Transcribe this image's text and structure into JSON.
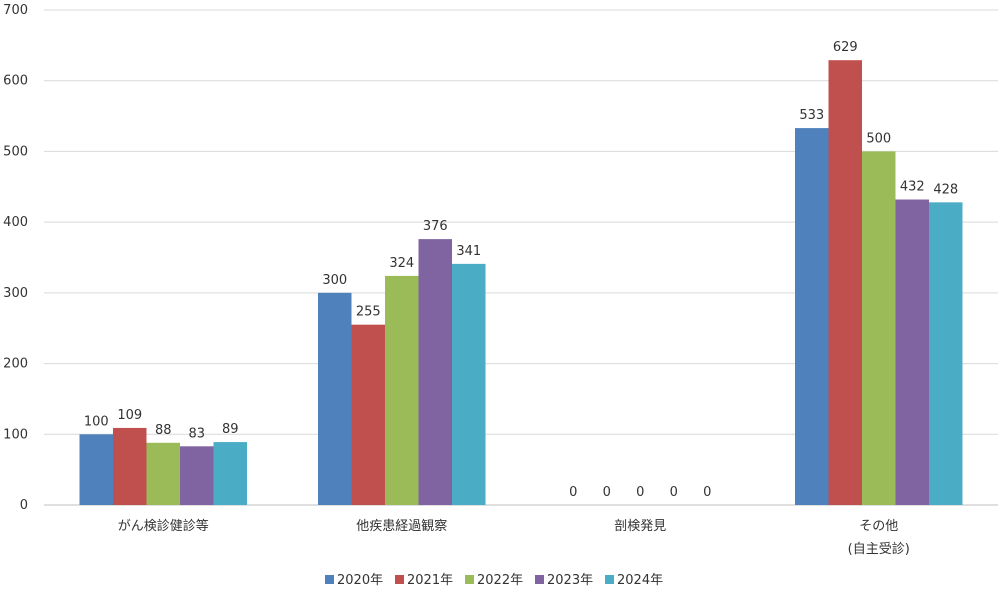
{
  "chart_data": {
    "type": "bar",
    "title": "",
    "xlabel": "",
    "ylabel": "",
    "ylim": [
      0,
      700
    ],
    "yticks": [
      0,
      100,
      200,
      300,
      400,
      500,
      600,
      700
    ],
    "grid": true,
    "legend_position": "bottom",
    "categories": [
      {
        "line1": "がん検診健診等",
        "line2": ""
      },
      {
        "line1": "他疾患経過観察",
        "line2": ""
      },
      {
        "line1": "剖検発見",
        "line2": ""
      },
      {
        "line1": "その他",
        "line2": "(自主受診)"
      }
    ],
    "series": [
      {
        "name": "2020年",
        "color": "#4F81BD",
        "values": [
          100,
          300,
          0,
          533
        ]
      },
      {
        "name": "2021年",
        "color": "#C0504D",
        "values": [
          109,
          255,
          0,
          629
        ]
      },
      {
        "name": "2022年",
        "color": "#9BBB59",
        "values": [
          88,
          324,
          0,
          500
        ]
      },
      {
        "name": "2023年",
        "color": "#8064A2",
        "values": [
          83,
          376,
          0,
          432
        ]
      },
      {
        "name": "2024年",
        "color": "#4BACC6",
        "values": [
          89,
          341,
          0,
          428
        ]
      }
    ]
  }
}
